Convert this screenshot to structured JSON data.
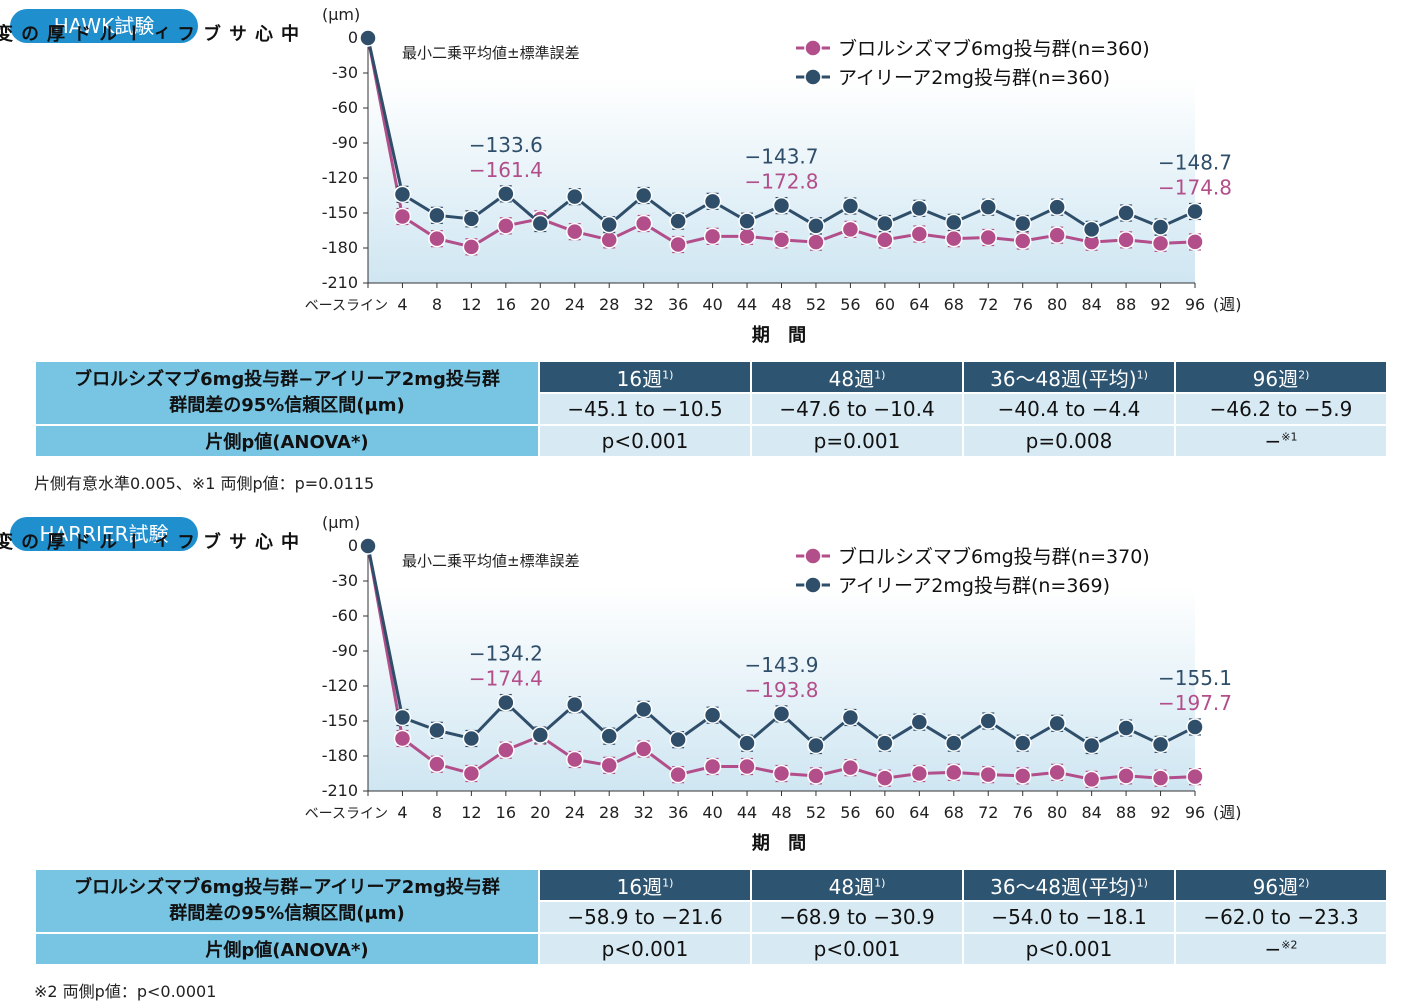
{
  "colors": {
    "blue": "#2f4e6a",
    "pink": "#b24e8a",
    "badge": "#1f8fce",
    "header": "#2d5470",
    "cell": "#d7eaf3",
    "label_cell": "#78c4e3"
  },
  "panels": [
    {
      "badge": "HAWK試験",
      "y_unit": "(μm)",
      "y_label": "中心サブフィールド厚の変化量",
      "x_title": "期 間",
      "x_unit": "(週)",
      "note": "最小二乗平均値±標準誤差",
      "legend": [
        "ブロルシズマブ6mg投与群(n=360)",
        "アイリーア2mg投与群(n=360)"
      ],
      "table": {
        "corner_line1": "ブロルシズマブ6mg投与群−アイリーア2mg投与群",
        "corner_line2": "群間差の95%信頼区間(μm)",
        "headers": [
          "16週",
          "48週",
          "36〜48週(平均)",
          "96週"
        ],
        "header_notes": [
          "1)",
          "1)",
          "1)",
          "2)"
        ],
        "ci": [
          "−45.1 to −10.5",
          "−47.6 to −10.4",
          "−40.4 to −4.4",
          "−46.2 to −5.9"
        ],
        "p_label": "片側p値(ANOVA*)",
        "p": [
          "p<0.001",
          "p=0.001",
          "p=0.008",
          "−"
        ],
        "p_note": "※1"
      },
      "footnote": "片側有意水準0.005、※1 両側p値：p=0.0115"
    },
    {
      "badge": "HARRIER試験",
      "y_unit": "(μm)",
      "y_label": "中心サブフィールド厚の変化量",
      "x_title": "期 間",
      "x_unit": "(週)",
      "note": "最小二乗平均値±標準誤差",
      "legend": [
        "ブロルシズマブ6mg投与群(n=370)",
        "アイリーア2mg投与群(n=369)"
      ],
      "table": {
        "corner_line1": "ブロルシズマブ6mg投与群−アイリーア2mg投与群",
        "corner_line2": "群間差の95%信頼区間(μm)",
        "headers": [
          "16週",
          "48週",
          "36〜48週(平均)",
          "96週"
        ],
        "header_notes": [
          "1)",
          "1)",
          "1)",
          "2)"
        ],
        "ci": [
          "−58.9 to −21.6",
          "−68.9 to −30.9",
          "−54.0 to −18.1",
          "−62.0 to −23.3"
        ],
        "p_label": "片側p値(ANOVA*)",
        "p": [
          "p<0.001",
          "p<0.001",
          "p<0.001",
          "−"
        ],
        "p_note": "※2"
      },
      "footnote": "※2 両側p値：p<0.0001"
    }
  ],
  "chart_data": [
    {
      "type": "line",
      "x_labels": [
        "ベースライン",
        "4",
        "8",
        "12",
        "16",
        "20",
        "24",
        "28",
        "32",
        "36",
        "40",
        "44",
        "48",
        "52",
        "56",
        "60",
        "64",
        "68",
        "72",
        "76",
        "80",
        "84",
        "88",
        "92",
        "96"
      ],
      "y_ticks": [
        0,
        -30,
        -60,
        -90,
        -120,
        -150,
        -180,
        -210
      ],
      "ylim": [
        -210,
        0
      ],
      "series": [
        {
          "name": "ブロルシズマブ6mg投与群(n=360)",
          "color": "#b24e8a",
          "values": [
            0,
            -153,
            -172,
            -179,
            -161,
            -155,
            -166,
            -173,
            -159,
            -177,
            -170,
            -170,
            -173,
            -175,
            -164,
            -173,
            -168,
            -172,
            -171,
            -174,
            -169,
            -175,
            -173,
            -176,
            -174.8
          ]
        },
        {
          "name": "アイリーア2mg投与群(n=360)",
          "color": "#2f4e6a",
          "values": [
            0,
            -134,
            -152,
            -155,
            -133.6,
            -159,
            -136,
            -160,
            -135,
            -157,
            -140,
            -157,
            -143.7,
            -161,
            -144,
            -159,
            -146,
            -158,
            -145,
            -159,
            -145,
            -164,
            -150,
            -162,
            -148.7
          ]
        }
      ],
      "data_labels": [
        {
          "x": "16",
          "blue": "−133.6",
          "pink": "−161.4"
        },
        {
          "x": "48",
          "blue": "−143.7",
          "pink": "−172.8"
        },
        {
          "x": "96",
          "blue": "−148.7",
          "pink": "−174.8"
        }
      ]
    },
    {
      "type": "line",
      "x_labels": [
        "ベースライン",
        "4",
        "8",
        "12",
        "16",
        "20",
        "24",
        "28",
        "32",
        "36",
        "40",
        "44",
        "48",
        "52",
        "56",
        "60",
        "64",
        "68",
        "72",
        "76",
        "80",
        "84",
        "88",
        "92",
        "96"
      ],
      "y_ticks": [
        0,
        -30,
        -60,
        -90,
        -120,
        -150,
        -180,
        -210
      ],
      "ylim": [
        -210,
        0
      ],
      "series": [
        {
          "name": "ブロルシズマブ6mg投与群(n=370)",
          "color": "#b24e8a",
          "values": [
            0,
            -165,
            -187,
            -195,
            -175,
            -163,
            -183,
            -188,
            -174,
            -196,
            -189,
            -189,
            -195,
            -197,
            -190,
            -199,
            -195,
            -194,
            -196,
            -197,
            -194,
            -200,
            -197,
            -199,
            -197.7
          ]
        },
        {
          "name": "アイリーア2mg投与群(n=369)",
          "color": "#2f4e6a",
          "values": [
            0,
            -147,
            -158,
            -165,
            -134.2,
            -162,
            -136,
            -163,
            -140,
            -166,
            -145,
            -169,
            -143.9,
            -171,
            -147,
            -169,
            -151,
            -169,
            -150,
            -169,
            -152,
            -171,
            -156,
            -170,
            -155.1
          ]
        }
      ],
      "data_labels": [
        {
          "x": "16",
          "blue": "−134.2",
          "pink": "−174.4"
        },
        {
          "x": "48",
          "blue": "−143.9",
          "pink": "−193.8"
        },
        {
          "x": "96",
          "blue": "−155.1",
          "pink": "−197.7"
        }
      ]
    }
  ]
}
